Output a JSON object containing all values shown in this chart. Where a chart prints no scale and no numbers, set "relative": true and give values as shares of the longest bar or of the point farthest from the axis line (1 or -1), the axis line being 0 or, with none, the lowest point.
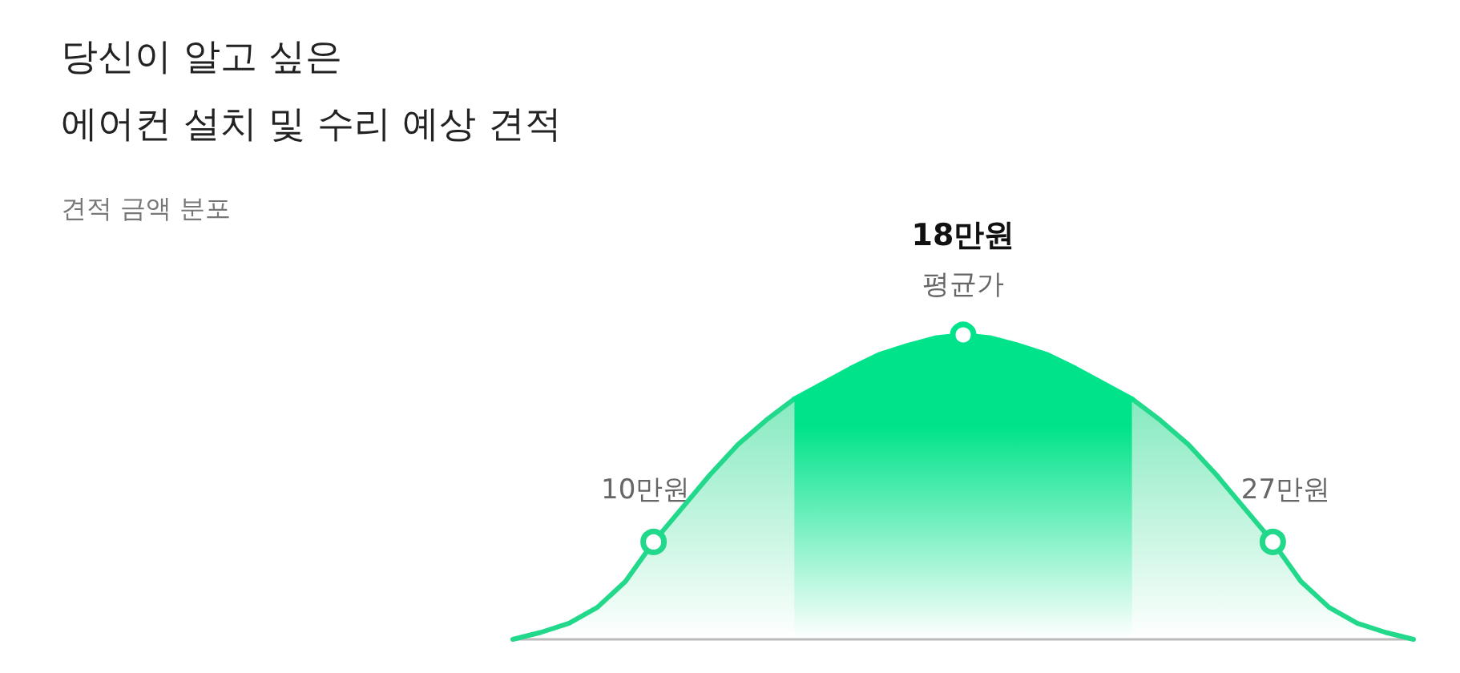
{
  "chart_data": {
    "type": "area",
    "title": "당신이 알고 싶은\n에어컨 설치 및 수리 예상 견적",
    "subtitle": "견적 금액 분포",
    "relative": true,
    "grid": false,
    "annotations": [
      {
        "text": "10만원",
        "y": 0.32
      },
      {
        "text": "18만원",
        "y": 1
      },
      "평균가",
      {
        "text": "27만원",
        "y": 0.32
      }
    ],
    "categories": [
      null,
      null,
      null,
      null,
      null,
      null,
      null,
      null,
      null,
      null,
      null,
      null,
      null,
      null,
      null,
      null,
      null,
      null,
      null,
      null,
      null,
      null,
      null,
      null,
      null,
      null,
      null,
      null,
      null,
      null,
      null,
      null,
      null
    ],
    "series": [
      {
        "color": "#22d98b",
        "values": [
          0,
          0.023,
          0.053,
          0.105,
          0.19,
          0.32,
          0.43,
          0.54,
          0.64,
          0.72,
          0.79,
          null,
          null,
          null,
          null,
          null,
          null,
          null,
          null,
          null,
          null,
          null,
          null,
          null,
          null,
          null,
          null,
          null,
          null,
          null,
          null,
          null,
          null
        ]
      },
      {
        "color": "#00e38a",
        "values": [
          null,
          null,
          null,
          null,
          null,
          null,
          null,
          null,
          null,
          null,
          0.79,
          0.84,
          0.89,
          0.935,
          0.965,
          0.99,
          1,
          0.99,
          0.965,
          0.935,
          0.89,
          0.84,
          0.79,
          null,
          null,
          null,
          null,
          null,
          null,
          null,
          null,
          null,
          null
        ]
      },
      {
        "color": "#22d98b",
        "values": [
          null,
          null,
          null,
          null,
          null,
          null,
          null,
          null,
          null,
          null,
          null,
          null,
          null,
          null,
          null,
          null,
          null,
          null,
          null,
          null,
          null,
          null,
          0.79,
          0.72,
          0.64,
          0.54,
          0.43,
          0.32,
          0.19,
          0.105,
          0.053,
          0.023,
          0
        ]
      }
    ]
  }
}
